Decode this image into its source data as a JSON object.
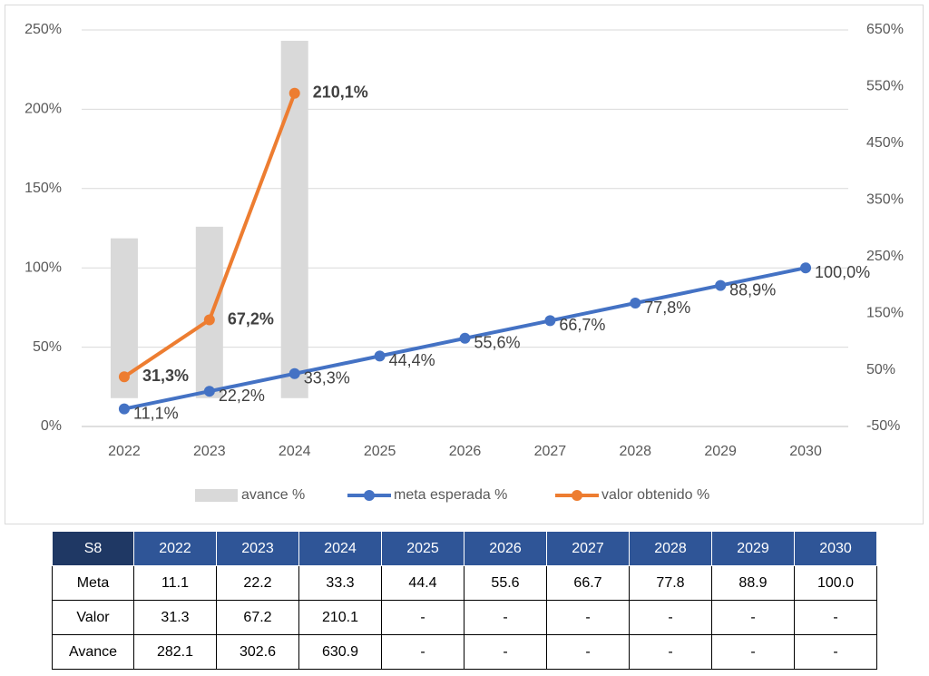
{
  "chart_data": {
    "type": "combo",
    "categories": [
      "2022",
      "2023",
      "2024",
      "2025",
      "2026",
      "2027",
      "2028",
      "2029",
      "2030"
    ],
    "series": [
      {
        "name": "avance %",
        "type": "bar",
        "axis": "y2",
        "color": "#d9d9d9",
        "values": [
          282.1,
          302.6,
          630.9,
          null,
          null,
          null,
          null,
          null,
          null
        ]
      },
      {
        "name": "meta esperada %",
        "type": "line",
        "color": "#4472c4",
        "values": [
          11.1,
          22.2,
          33.3,
          44.4,
          55.6,
          66.7,
          77.8,
          88.9,
          100.0
        ],
        "value_labels": [
          "11,1%",
          "22,2%",
          "33,3%",
          "44,4%",
          "55,6%",
          "66,7%",
          "77,8%",
          "88,9%",
          "100,0%"
        ]
      },
      {
        "name": "valor obtenido %",
        "type": "line",
        "color": "#ed7d31",
        "values": [
          31.3,
          67.2,
          210.1,
          null,
          null,
          null,
          null,
          null,
          null
        ],
        "value_labels": [
          "31,3%",
          "67,2%",
          "210,1%",
          null,
          null,
          null,
          null,
          null,
          null
        ]
      }
    ],
    "ylim": [
      0,
      250
    ],
    "yticks": [
      {
        "value": 0,
        "label": "0%"
      },
      {
        "value": 50,
        "label": "50%"
      },
      {
        "value": 100,
        "label": "100%"
      },
      {
        "value": 150,
        "label": "150%"
      },
      {
        "value": 200,
        "label": "200%"
      },
      {
        "value": 250,
        "label": "250%"
      }
    ],
    "y2lim": [
      -50,
      650
    ],
    "y2ticks": [
      {
        "value": -50,
        "label": "-50%"
      },
      {
        "value": 50,
        "label": "50%"
      },
      {
        "value": 150,
        "label": "150%"
      },
      {
        "value": 250,
        "label": "250%"
      },
      {
        "value": 350,
        "label": "350%"
      },
      {
        "value": 450,
        "label": "450%"
      },
      {
        "value": 550,
        "label": "550%"
      },
      {
        "value": 650,
        "label": "650%"
      }
    ],
    "grid": true,
    "legend": "bottom"
  },
  "table": {
    "header": [
      "S8",
      "2022",
      "2023",
      "2024",
      "2025",
      "2026",
      "2027",
      "2028",
      "2029",
      "2030"
    ],
    "rows": [
      [
        "Meta",
        "11.1",
        "22.2",
        "33.3",
        "44.4",
        "55.6",
        "66.7",
        "77.8",
        "88.9",
        "100.0"
      ],
      [
        "Valor",
        "31.3",
        "67.2",
        "210.1",
        "-",
        "-",
        "-",
        "-",
        "-",
        "-"
      ],
      [
        "Avance",
        "282.1",
        "302.6",
        "630.9",
        "-",
        "-",
        "-",
        "-",
        "-",
        "-"
      ]
    ]
  }
}
